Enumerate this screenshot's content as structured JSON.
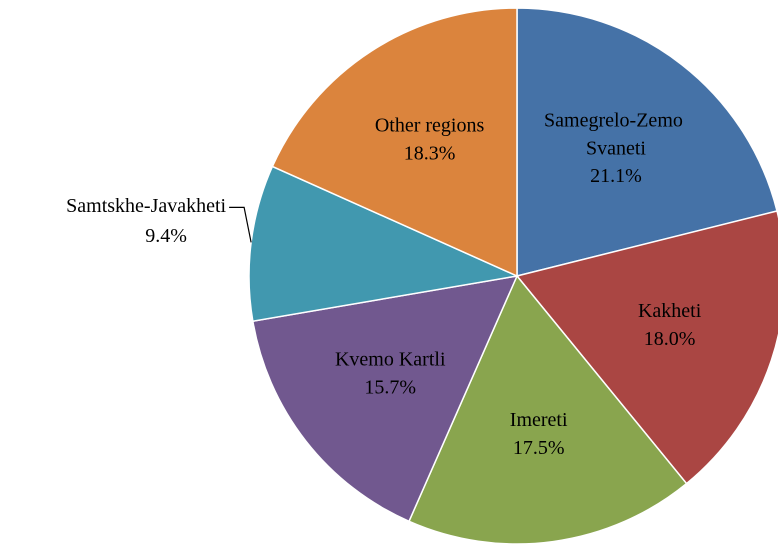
{
  "chart_data": {
    "type": "pie",
    "categories": [
      "Samegrelo-Zemo Svaneti",
      "Kakheti",
      "Imereti",
      "Kvemo Kartli",
      "Samtskhe-Javakheti",
      "Other regions"
    ],
    "values": [
      21.1,
      18.0,
      17.5,
      15.7,
      9.4,
      18.3
    ],
    "value_labels": [
      "21.1%",
      "18.0%",
      "17.5%",
      "15.7%",
      "9.4%",
      "18.3%"
    ],
    "colors": [
      "#4572a7",
      "#aa4643",
      "#89a54e",
      "#71588f",
      "#4198af",
      "#db843d"
    ]
  }
}
